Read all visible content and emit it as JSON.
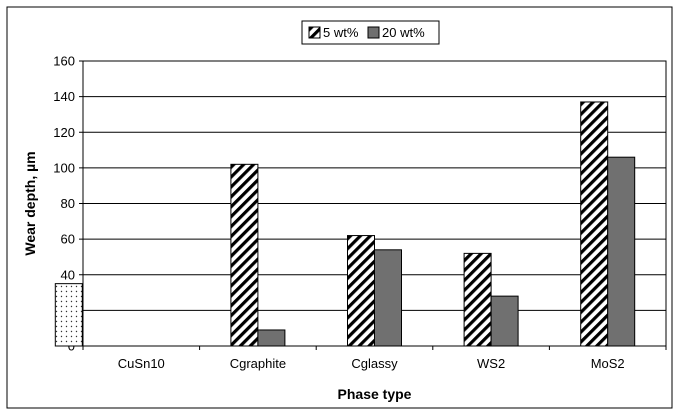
{
  "chart_data": {
    "type": "bar",
    "title": "",
    "xlabel": "Phase type",
    "ylabel": "Wear depth, µm",
    "ylim": [
      0,
      160
    ],
    "yticks": [
      0,
      20,
      40,
      60,
      80,
      100,
      120,
      140,
      160
    ],
    "grid": "horizontal",
    "legend_position": "top-center",
    "categories": [
      "CuSn10",
      "Cgraphite",
      "Cglassy",
      "WS2",
      "MoS2"
    ],
    "reference": {
      "category": "CuSn10",
      "value": 35,
      "pattern": "dotted"
    },
    "series": [
      {
        "name": "5 wt%",
        "pattern": "diagonal-hatch",
        "values": [
          null,
          102,
          62,
          52,
          137
        ]
      },
      {
        "name": "20 wt%",
        "pattern": "solid",
        "color": "#707070",
        "values": [
          null,
          9,
          54,
          28,
          106
        ]
      }
    ]
  }
}
